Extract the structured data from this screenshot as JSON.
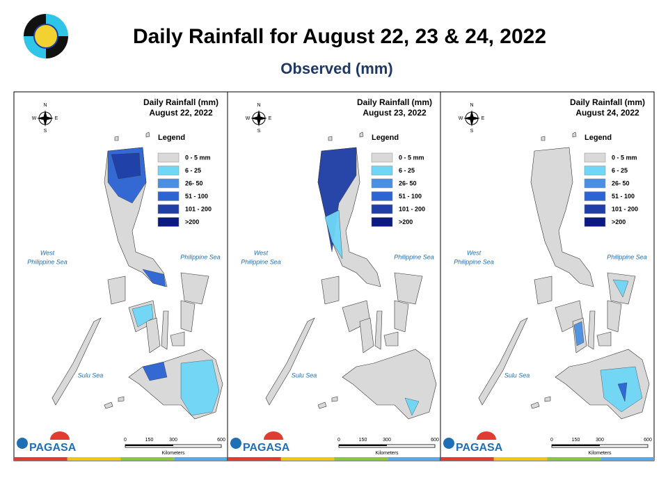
{
  "header": {
    "title": "Daily Rainfall for August 22, 23 & 24, 2022",
    "subtitle": "Observed (mm)"
  },
  "maps": [
    {
      "title": "Daily Rainfall (mm)",
      "date": "August 22, 2022"
    },
    {
      "title": "Daily Rainfall (mm)",
      "date": "August 23, 2022"
    },
    {
      "title": "Daily Rainfall (mm)",
      "date": "August 24, 2022"
    }
  ],
  "legend": {
    "title": "Legend",
    "items": [
      {
        "label": "0 - 5 mm",
        "color": "#d9d9d9"
      },
      {
        "label": "6 - 25",
        "color": "#6fd6f7"
      },
      {
        "label": "26- 50",
        "color": "#4a90e2"
      },
      {
        "label": "51 - 100",
        "color": "#2c64d4"
      },
      {
        "label": "101 - 200",
        "color": "#1f3fa6"
      },
      {
        "label": ">200",
        "color": "#0b1a80"
      }
    ]
  },
  "seas": {
    "west": [
      "West",
      "Philippine Sea"
    ],
    "east": "Philippine Sea",
    "sulu": "Sulu Sea"
  },
  "compass": {
    "n": "N",
    "e": "E",
    "s": "S",
    "w": "W"
  },
  "scale": {
    "ticks": [
      0,
      150,
      300,
      600
    ],
    "unit": "Kilometers"
  },
  "branding": {
    "agency": "PAGASA"
  }
}
